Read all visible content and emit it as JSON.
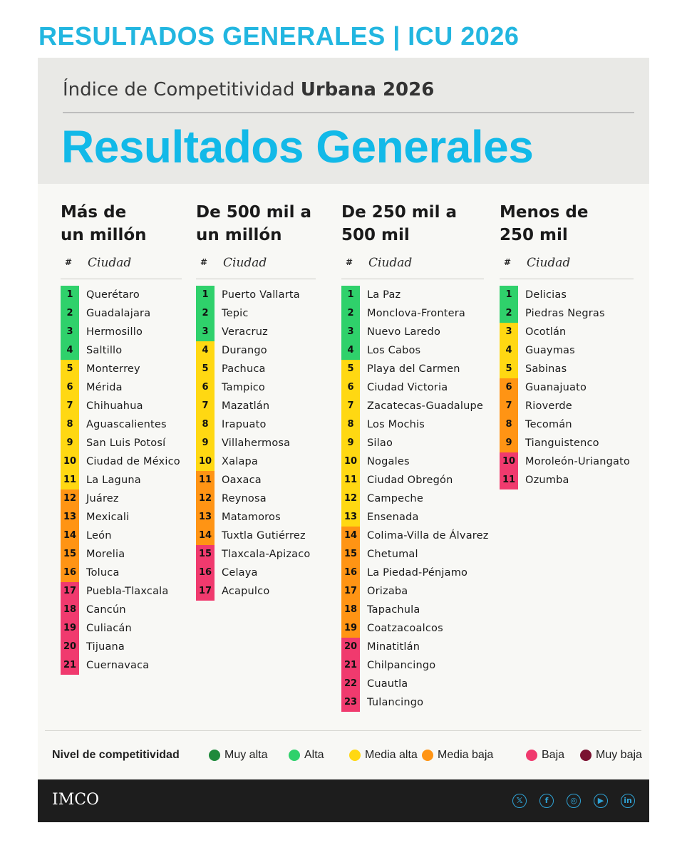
{
  "page_title": "RESULTADOS GENERALES | ICU 2026",
  "header": {
    "subtitle_light": "Índice de Competitividad",
    "subtitle_bold": "Urbana 2026",
    "title": "Resultados Generales"
  },
  "colors": {
    "muy_alta": "#1f8a3b",
    "alta": "#2fd16b",
    "media_alta": "#ffd812",
    "media_baja": "#ff9414",
    "baja": "#f03a6e",
    "muy_baja": "#7a1230"
  },
  "columns": [
    {
      "title_line1": "Más de",
      "title_line2": "un millón",
      "hash": "#",
      "ciudad_label": "Ciudad",
      "rows": [
        {
          "rank": "1",
          "city": "Querétaro",
          "level": "alta"
        },
        {
          "rank": "2",
          "city": "Guadalajara",
          "level": "alta"
        },
        {
          "rank": "3",
          "city": "Hermosillo",
          "level": "alta"
        },
        {
          "rank": "4",
          "city": "Saltillo",
          "level": "alta"
        },
        {
          "rank": "5",
          "city": "Monterrey",
          "level": "media_alta"
        },
        {
          "rank": "6",
          "city": "Mérida",
          "level": "media_alta"
        },
        {
          "rank": "7",
          "city": "Chihuahua",
          "level": "media_alta"
        },
        {
          "rank": "8",
          "city": "Aguascalientes",
          "level": "media_alta"
        },
        {
          "rank": "9",
          "city": "San Luis Potosí",
          "level": "media_alta"
        },
        {
          "rank": "10",
          "city": "Ciudad de México",
          "level": "media_alta"
        },
        {
          "rank": "11",
          "city": "La Laguna",
          "level": "media_alta"
        },
        {
          "rank": "12",
          "city": "Juárez",
          "level": "media_baja"
        },
        {
          "rank": "13",
          "city": "Mexicali",
          "level": "media_baja"
        },
        {
          "rank": "14",
          "city": "León",
          "level": "media_baja"
        },
        {
          "rank": "15",
          "city": "Morelia",
          "level": "media_baja"
        },
        {
          "rank": "16",
          "city": "Toluca",
          "level": "media_baja"
        },
        {
          "rank": "17",
          "city": "Puebla-Tlaxcala",
          "level": "baja"
        },
        {
          "rank": "18",
          "city": "Cancún",
          "level": "baja"
        },
        {
          "rank": "19",
          "city": "Culiacán",
          "level": "baja"
        },
        {
          "rank": "20",
          "city": "Tijuana",
          "level": "baja"
        },
        {
          "rank": "21",
          "city": "Cuernavaca",
          "level": "baja"
        }
      ]
    },
    {
      "title_line1": "De 500 mil a",
      "title_line2": "un millón",
      "hash": "#",
      "ciudad_label": "Ciudad",
      "rows": [
        {
          "rank": "1",
          "city": "Puerto Vallarta",
          "level": "alta"
        },
        {
          "rank": "2",
          "city": "Tepic",
          "level": "alta"
        },
        {
          "rank": "3",
          "city": "Veracruz",
          "level": "alta"
        },
        {
          "rank": "4",
          "city": "Durango",
          "level": "media_alta"
        },
        {
          "rank": "5",
          "city": "Pachuca",
          "level": "media_alta"
        },
        {
          "rank": "6",
          "city": "Tampico",
          "level": "media_alta"
        },
        {
          "rank": "7",
          "city": "Mazatlán",
          "level": "media_alta"
        },
        {
          "rank": "8",
          "city": "Irapuato",
          "level": "media_alta"
        },
        {
          "rank": "9",
          "city": "Villahermosa",
          "level": "media_alta"
        },
        {
          "rank": "10",
          "city": "Xalapa",
          "level": "media_alta"
        },
        {
          "rank": "11",
          "city": "Oaxaca",
          "level": "media_baja"
        },
        {
          "rank": "12",
          "city": "Reynosa",
          "level": "media_baja"
        },
        {
          "rank": "13",
          "city": "Matamoros",
          "level": "media_baja"
        },
        {
          "rank": "14",
          "city": "Tuxtla Gutiérrez",
          "level": "media_baja"
        },
        {
          "rank": "15",
          "city": "Tlaxcala-Apizaco",
          "level": "baja"
        },
        {
          "rank": "16",
          "city": "Celaya",
          "level": "baja"
        },
        {
          "rank": "17",
          "city": "Acapulco",
          "level": "baja"
        }
      ]
    },
    {
      "title_line1": "De 250 mil a",
      "title_line2": "500 mil",
      "hash": "#",
      "ciudad_label": "Ciudad",
      "rows": [
        {
          "rank": "1",
          "city": "La Paz",
          "level": "alta"
        },
        {
          "rank": "2",
          "city": "Monclova-Frontera",
          "level": "alta"
        },
        {
          "rank": "3",
          "city": "Nuevo Laredo",
          "level": "alta"
        },
        {
          "rank": "4",
          "city": "Los Cabos",
          "level": "alta"
        },
        {
          "rank": "5",
          "city": "Playa del Carmen",
          "level": "media_alta"
        },
        {
          "rank": "6",
          "city": "Ciudad Victoria",
          "level": "media_alta"
        },
        {
          "rank": "7",
          "city": "Zacatecas-Guadalupe",
          "level": "media_alta"
        },
        {
          "rank": "8",
          "city": "Los Mochis",
          "level": "media_alta"
        },
        {
          "rank": "9",
          "city": "Silao",
          "level": "media_alta"
        },
        {
          "rank": "10",
          "city": "Nogales",
          "level": "media_alta"
        },
        {
          "rank": "11",
          "city": "Ciudad Obregón",
          "level": "media_alta"
        },
        {
          "rank": "12",
          "city": "Campeche",
          "level": "media_alta"
        },
        {
          "rank": "13",
          "city": "Ensenada",
          "level": "media_alta"
        },
        {
          "rank": "14",
          "city": "Colima-Villa de Álvarez",
          "level": "media_baja"
        },
        {
          "rank": "15",
          "city": "Chetumal",
          "level": "media_baja"
        },
        {
          "rank": "16",
          "city": "La Piedad-Pénjamo",
          "level": "media_baja"
        },
        {
          "rank": "17",
          "city": "Orizaba",
          "level": "media_baja"
        },
        {
          "rank": "18",
          "city": "Tapachula",
          "level": "media_baja"
        },
        {
          "rank": "19",
          "city": "Coatzacoalcos",
          "level": "media_baja"
        },
        {
          "rank": "20",
          "city": "Minatitlán",
          "level": "baja"
        },
        {
          "rank": "21",
          "city": "Chilpancingo",
          "level": "baja"
        },
        {
          "rank": "22",
          "city": "Cuautla",
          "level": "baja"
        },
        {
          "rank": "23",
          "city": "Tulancingo",
          "level": "baja"
        }
      ]
    },
    {
      "title_line1": "Menos de",
      "title_line2": "250 mil",
      "hash": "#",
      "ciudad_label": "Ciudad",
      "rows": [
        {
          "rank": "1",
          "city": "Delicias",
          "level": "alta"
        },
        {
          "rank": "2",
          "city": "Piedras Negras",
          "level": "alta"
        },
        {
          "rank": "3",
          "city": "Ocotlán",
          "level": "media_alta"
        },
        {
          "rank": "4",
          "city": "Guaymas",
          "level": "media_alta"
        },
        {
          "rank": "5",
          "city": "Sabinas",
          "level": "media_alta"
        },
        {
          "rank": "6",
          "city": "Guanajuato",
          "level": "media_baja"
        },
        {
          "rank": "7",
          "city": "Rioverde",
          "level": "media_baja"
        },
        {
          "rank": "8",
          "city": "Tecomán",
          "level": "media_baja"
        },
        {
          "rank": "9",
          "city": "Tianguistenco",
          "level": "media_baja"
        },
        {
          "rank": "10",
          "city": "Moroleón-Uriangato",
          "level": "baja"
        },
        {
          "rank": "11",
          "city": "Ozumba",
          "level": "baja"
        }
      ]
    }
  ],
  "legend": {
    "label": "Nivel de competitividad",
    "items": [
      {
        "text": "Muy alta",
        "level": "muy_alta"
      },
      {
        "text": "Alta",
        "level": "alta"
      },
      {
        "text": "Media alta",
        "level": "media_alta"
      },
      {
        "text": "Media baja",
        "level": "media_baja"
      },
      {
        "text": "Baja",
        "level": "baja"
      },
      {
        "text": "Muy baja",
        "level": "muy_baja"
      }
    ]
  },
  "footer": {
    "logo": "IMCO",
    "social": [
      {
        "icon": "x-icon",
        "glyph": "𝕏"
      },
      {
        "icon": "facebook-icon",
        "glyph": "f"
      },
      {
        "icon": "instagram-icon",
        "glyph": "◎"
      },
      {
        "icon": "youtube-icon",
        "glyph": "▶"
      },
      {
        "icon": "linkedin-icon",
        "glyph": "in"
      }
    ]
  }
}
